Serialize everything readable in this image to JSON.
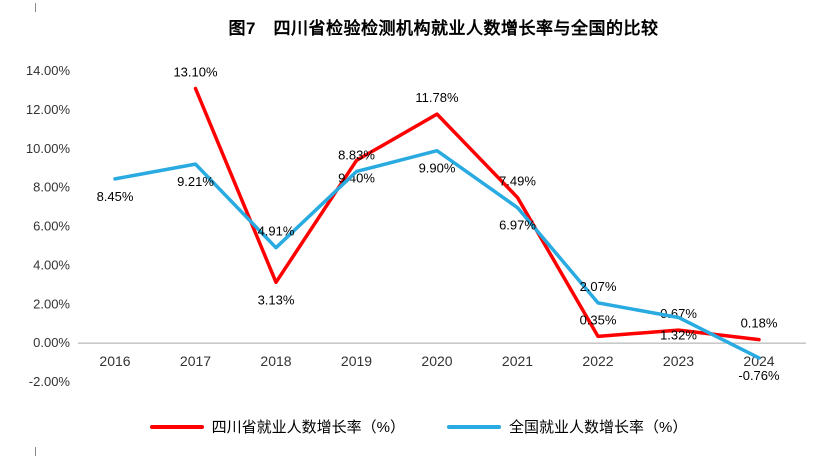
{
  "figure": {
    "title": "图7　四川省检验检测机构就业人数增长率与全国的比较"
  },
  "chart_data": {
    "type": "line",
    "title": "图7　四川省检验检测机构就业人数增长率与全国的比较",
    "categories": [
      "2016",
      "2017",
      "2018",
      "2019",
      "2020",
      "2021",
      "2022",
      "2023",
      "2024"
    ],
    "series": [
      {
        "name": "四川省就业人数增长率（%）",
        "color": "#ff0000",
        "values": [
          null,
          13.1,
          3.13,
          9.4,
          11.78,
          7.49,
          0.35,
          0.67,
          0.18
        ],
        "label_positions": [
          null,
          "above",
          "below",
          "below",
          "above",
          "above",
          "above",
          "above",
          "above"
        ]
      },
      {
        "name": "全国就业人数增长率（%）",
        "color": "#29abe2",
        "values": [
          8.45,
          9.21,
          4.91,
          8.83,
          9.9,
          6.97,
          2.07,
          1.32,
          -0.76
        ],
        "label_positions": [
          "below",
          "below",
          "above",
          "above",
          "below",
          "below",
          "above",
          "below",
          "below"
        ]
      }
    ],
    "xlabel": "",
    "ylabel": "",
    "ylim": [
      -2,
      14
    ],
    "ytick_step": 2,
    "ytick_format": "0.00%",
    "grid": false,
    "legend_position": "bottom"
  }
}
